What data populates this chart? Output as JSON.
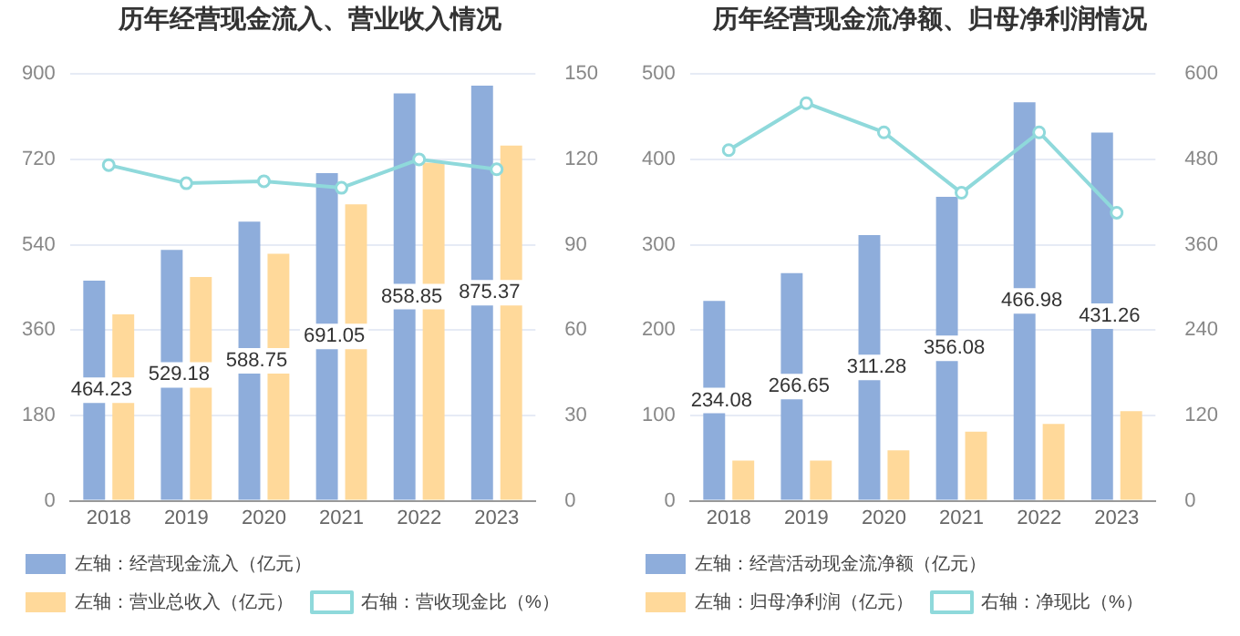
{
  "chart_data": [
    {
      "type": "bar",
      "title": "历年经营现金流入、营业收入情况",
      "categories": [
        "2018",
        "2019",
        "2020",
        "2021",
        "2022",
        "2023"
      ],
      "series": [
        {
          "name": "左轴：经营现金流入（亿元）",
          "color": "#8eaddb",
          "values": [
            464.23,
            529.18,
            588.75,
            691.05,
            858.85,
            875.37
          ],
          "value_labels": [
            "464.23",
            "529.18",
            "588.75",
            "691.05",
            "858.85",
            "875.37"
          ]
        },
        {
          "name": "左轴：营业总收入（亿元）",
          "color": "#ffd99a",
          "values": [
            393,
            472,
            521,
            625,
            713,
            749
          ]
        },
        {
          "name": "右轴：营收现金比（%）",
          "type": "line",
          "axis": "y2",
          "color": "#8fd9db",
          "values": [
            118,
            111.6,
            112.3,
            110,
            120,
            116.5
          ]
        }
      ],
      "ylim": [
        0,
        900
      ],
      "yticks": [
        0,
        180,
        360,
        540,
        720,
        900
      ],
      "y2lim": [
        0,
        150
      ],
      "y2ticks": [
        0,
        30,
        60,
        90,
        120,
        150
      ],
      "grid": "y",
      "legend": "bottom",
      "marker": "circle"
    },
    {
      "type": "bar",
      "title": "历年经营现金流净额、归母净利润情况",
      "categories": [
        "2018",
        "2019",
        "2020",
        "2021",
        "2022",
        "2023"
      ],
      "series": [
        {
          "name": "左轴：经营活动现金流净额（亿元）",
          "color": "#8eaddb",
          "values": [
            234.08,
            266.65,
            311.28,
            356.08,
            466.98,
            431.26
          ],
          "value_labels": [
            "234.08",
            "266.65",
            "311.28",
            "356.08",
            "466.98",
            "431.26"
          ]
        },
        {
          "name": "左轴：归母净利润（亿元）",
          "color": "#ffd99a",
          "values": [
            47,
            47,
            59,
            81,
            90,
            105
          ]
        },
        {
          "name": "右轴：净现比（%）",
          "type": "line",
          "axis": "y2",
          "color": "#8fd9db",
          "values": [
            493,
            559,
            518,
            433,
            518,
            405
          ]
        }
      ],
      "ylim": [
        0,
        500
      ],
      "yticks": [
        0,
        100,
        200,
        300,
        400,
        500
      ],
      "y2lim": [
        0,
        600
      ],
      "y2ticks": [
        0,
        120,
        240,
        360,
        480,
        600
      ],
      "grid": "y",
      "legend": "bottom",
      "marker": "circle"
    }
  ]
}
